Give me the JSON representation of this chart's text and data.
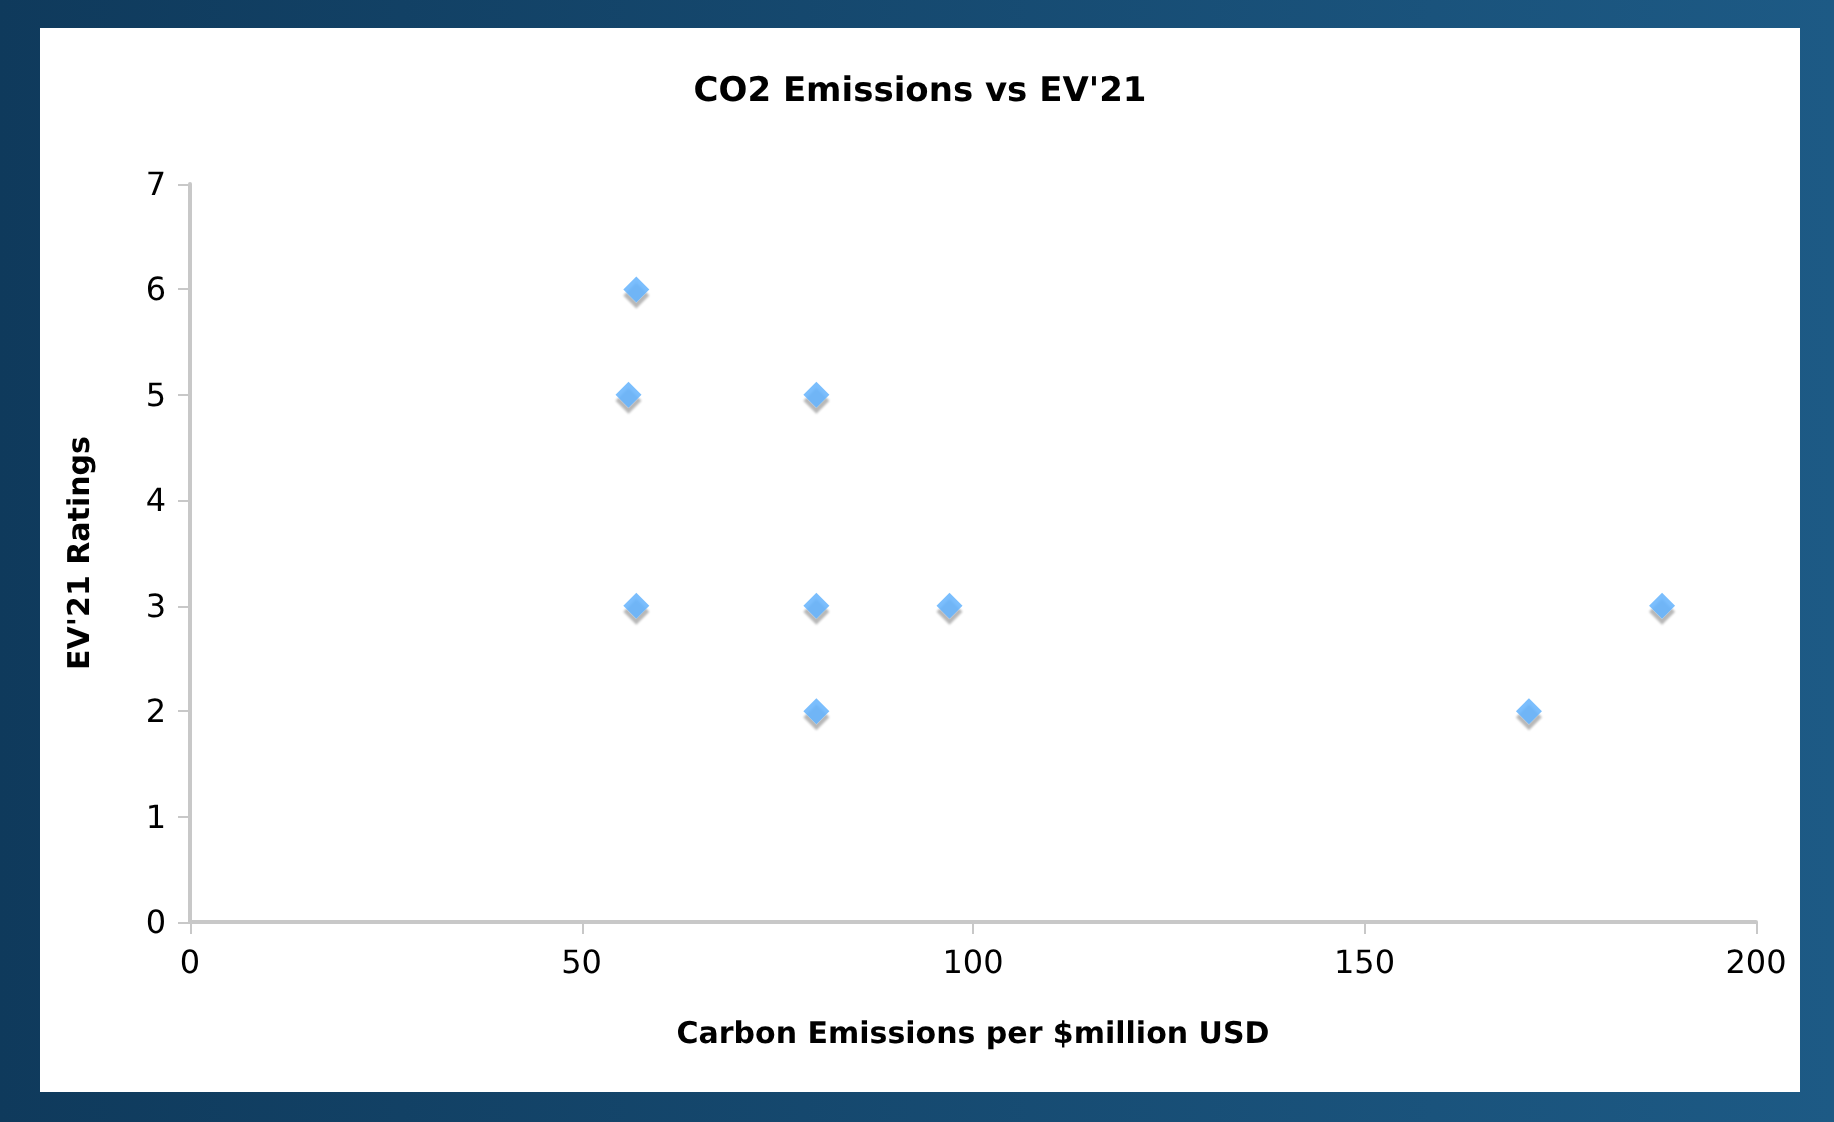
{
  "chart_data": {
    "type": "scatter",
    "title": "CO2 Emissions vs EV'21",
    "xlabel": "Carbon Emissions per $million USD",
    "ylabel": "EV'21 Ratings",
    "x": [
      57,
      56,
      57,
      80,
      80,
      80,
      97,
      171,
      188
    ],
    "values": [
      6,
      5,
      3,
      5,
      3,
      2,
      3,
      2,
      3
    ],
    "color": "#5aaefc",
    "marker": "diamond",
    "xlim": [
      0,
      200
    ],
    "xticks": [
      0,
      50,
      100,
      150,
      200
    ],
    "ylim": [
      0,
      7
    ],
    "yticks": [
      0,
      1,
      2,
      3,
      4,
      5,
      6,
      7
    ],
    "grid": false
  }
}
